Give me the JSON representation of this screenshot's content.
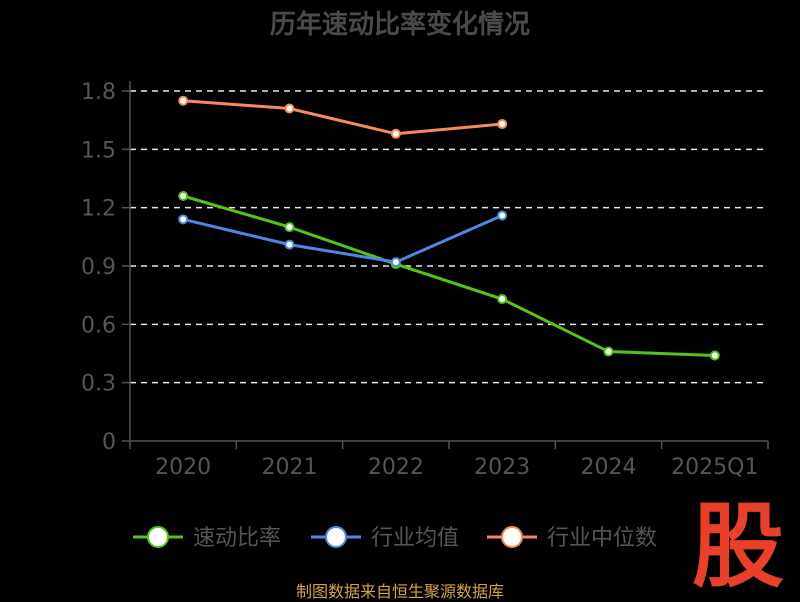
{
  "chart_data": {
    "type": "line",
    "title": "历年速动比率变化情况",
    "categories": [
      "2020",
      "2021",
      "2022",
      "2023",
      "2024",
      "2025Q1"
    ],
    "ylim": [
      0,
      1.8
    ],
    "yticks": [
      "0",
      "0.3",
      "0.6",
      "0.9",
      "1.2",
      "1.5",
      "1.8"
    ],
    "grid": true,
    "legend_position": "bottom",
    "series": [
      {
        "name": "速动比率",
        "color": "#52c41a",
        "values": [
          1.26,
          1.1,
          0.91,
          0.73,
          0.46,
          0.44
        ]
      },
      {
        "name": "行业均值",
        "color": "#4f86e0",
        "values": [
          1.14,
          1.01,
          0.92,
          1.16,
          null,
          null
        ]
      },
      {
        "name": "行业中位数",
        "color": "#f58a5c",
        "values": [
          1.75,
          1.71,
          1.58,
          1.63,
          null,
          null
        ]
      }
    ]
  },
  "source_text": "制图数据来自恒生聚源数据库",
  "logo_text": "股",
  "logo_color": "#e8402a"
}
